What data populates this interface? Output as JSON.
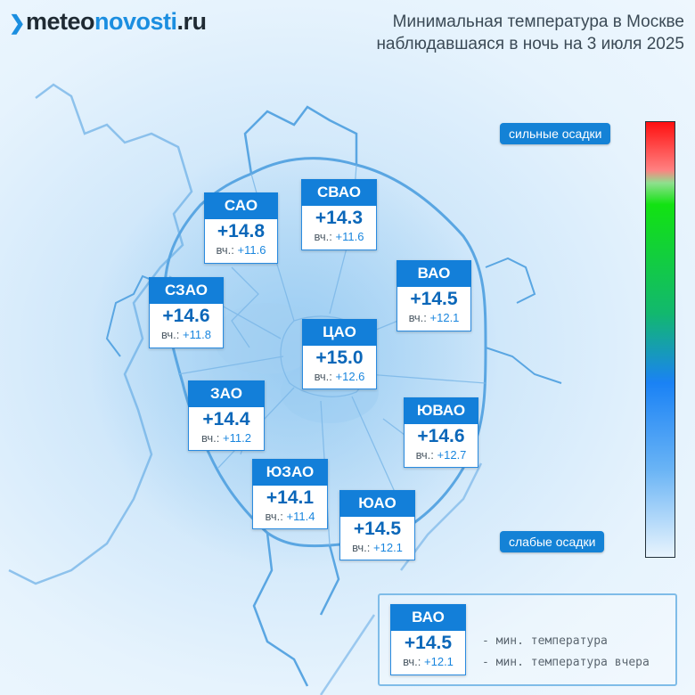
{
  "header": {
    "logo_prefix": "meteo",
    "logo_bold": "novosti",
    "logo_suffix": ".ru",
    "title_line1": "Минимальная температура в Москве",
    "title_line2": "наблюдавшаяся в ночь на 3 июля 2025"
  },
  "scale": {
    "top_label": "сильные осадки",
    "bottom_label": "слабые осадки"
  },
  "yesterday_prefix": "вч.:",
  "districts": [
    {
      "name": "САО",
      "temp": "+14.8",
      "yesterday": "+11.6"
    },
    {
      "name": "СВАО",
      "temp": "+14.3",
      "yesterday": "+11.6"
    },
    {
      "name": "ВАО",
      "temp": "+14.5",
      "yesterday": "+12.1"
    },
    {
      "name": "СЗАО",
      "temp": "+14.6",
      "yesterday": "+11.8"
    },
    {
      "name": "ЦАО",
      "temp": "+15.0",
      "yesterday": "+12.6"
    },
    {
      "name": "ЗАО",
      "temp": "+14.4",
      "yesterday": "+11.2"
    },
    {
      "name": "ЮВАО",
      "temp": "+14.6",
      "yesterday": "+12.7"
    },
    {
      "name": "ЮЗАО",
      "temp": "+14.1",
      "yesterday": "+11.4"
    },
    {
      "name": "ЮАО",
      "temp": "+14.5",
      "yesterday": "+12.1"
    }
  ],
  "legend": {
    "name": "ВАО",
    "temp": "+14.5",
    "yesterday": "+12.1",
    "min_temp_label": "- мин. температура",
    "min_temp_yesterday_label": "- мин. температура вчера"
  },
  "colors": {
    "accent": "#137fd9",
    "map_line": "#5aa6e2"
  }
}
